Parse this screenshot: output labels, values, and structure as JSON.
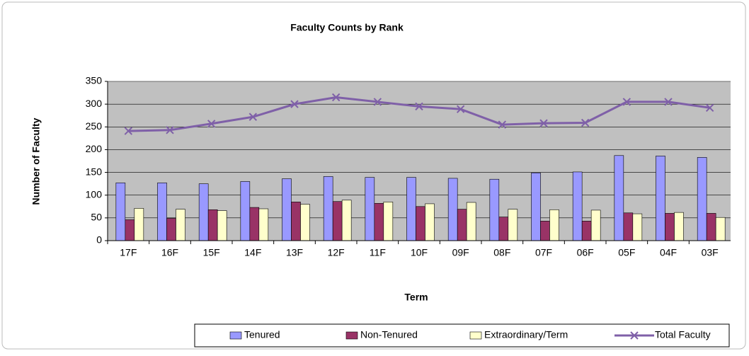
{
  "chart_data": {
    "type": "bar-line",
    "title": "Faculty Counts by Rank",
    "x_label": "Term",
    "y_label": "Number of Faculty",
    "categories": [
      "17F",
      "16F",
      "15F",
      "14F",
      "13F",
      "12F",
      "11F",
      "10F",
      "09F",
      "08F",
      "07F",
      "06F",
      "05F",
      "04F",
      "03F"
    ],
    "series": [
      {
        "name": "Tenured",
        "type": "bar",
        "color": "#9999ff",
        "values": [
          127,
          127,
          125,
          130,
          136,
          141,
          139,
          139,
          137,
          135,
          149,
          151,
          187,
          186,
          183
        ]
      },
      {
        "name": "Non-Tenured",
        "type": "bar",
        "color": "#993366",
        "values": [
          46,
          49,
          68,
          73,
          85,
          86,
          82,
          75,
          69,
          52,
          43,
          43,
          61,
          60,
          60
        ]
      },
      {
        "name": "Extraordinary/Term",
        "type": "bar",
        "color": "#ffffcc",
        "values": [
          71,
          69,
          66,
          70,
          80,
          89,
          85,
          81,
          84,
          69,
          68,
          67,
          59,
          62,
          51
        ]
      },
      {
        "name": "Total Faculty",
        "type": "line",
        "color": "#7f60a8",
        "values": [
          241,
          243,
          257,
          272,
          300,
          315,
          305,
          295,
          289,
          255,
          258,
          259,
          305,
          305,
          292
        ]
      }
    ],
    "ylim": [
      0,
      350
    ],
    "yticks": [
      0,
      50,
      100,
      150,
      200,
      250,
      300,
      350
    ],
    "grid": true,
    "legend": "bottom"
  }
}
